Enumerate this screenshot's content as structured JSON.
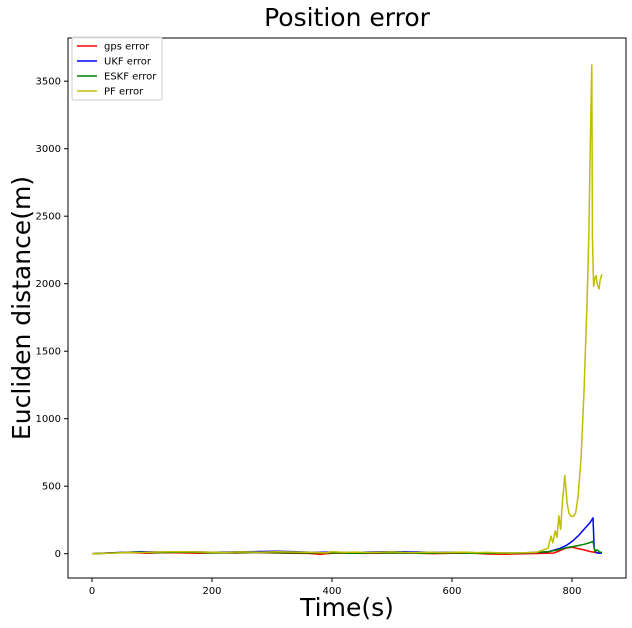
{
  "chart_data": {
    "type": "line",
    "title": "Position error",
    "xlabel": "Time(s)",
    "ylabel": "Eucliden distance(m)",
    "xlim": [
      -40,
      890
    ],
    "ylim": [
      -180,
      3820
    ],
    "xticks": [
      0,
      200,
      400,
      600,
      800
    ],
    "yticks": [
      0,
      500,
      1000,
      1500,
      2000,
      2500,
      3000,
      3500
    ],
    "grid": false,
    "legend_position": "top-left",
    "series": [
      {
        "name": "gps error",
        "color": "#ff0000",
        "points": [
          [
            0,
            0
          ],
          [
            30,
            6
          ],
          [
            60,
            9
          ],
          [
            90,
            4
          ],
          [
            120,
            8
          ],
          [
            150,
            6
          ],
          [
            180,
            3
          ],
          [
            210,
            7
          ],
          [
            240,
            5
          ],
          [
            270,
            9
          ],
          [
            300,
            6
          ],
          [
            330,
            4
          ],
          [
            360,
            2
          ],
          [
            380,
            -4
          ],
          [
            400,
            3
          ],
          [
            420,
            5
          ],
          [
            450,
            2
          ],
          [
            480,
            4
          ],
          [
            510,
            6
          ],
          [
            540,
            3
          ],
          [
            570,
            1
          ],
          [
            600,
            4
          ],
          [
            630,
            5
          ],
          [
            660,
            -2
          ],
          [
            690,
            -4
          ],
          [
            720,
            0
          ],
          [
            750,
            2
          ],
          [
            770,
            5
          ],
          [
            790,
            42
          ],
          [
            800,
            48
          ],
          [
            810,
            38
          ],
          [
            820,
            28
          ],
          [
            830,
            16
          ],
          [
            838,
            10
          ],
          [
            845,
            6
          ],
          [
            850,
            8
          ]
        ]
      },
      {
        "name": "UKF error",
        "color": "#0000ff",
        "points": [
          [
            0,
            0
          ],
          [
            40,
            8
          ],
          [
            80,
            14
          ],
          [
            120,
            12
          ],
          [
            160,
            15
          ],
          [
            200,
            11
          ],
          [
            240,
            13
          ],
          [
            280,
            16
          ],
          [
            310,
            18
          ],
          [
            340,
            14
          ],
          [
            370,
            10
          ],
          [
            400,
            12
          ],
          [
            430,
            9
          ],
          [
            460,
            12
          ],
          [
            490,
            15
          ],
          [
            520,
            14
          ],
          [
            550,
            12
          ],
          [
            580,
            10
          ],
          [
            610,
            11
          ],
          [
            640,
            7
          ],
          [
            670,
            5
          ],
          [
            700,
            4
          ],
          [
            730,
            6
          ],
          [
            760,
            14
          ],
          [
            780,
            40
          ],
          [
            790,
            60
          ],
          [
            800,
            90
          ],
          [
            810,
            130
          ],
          [
            820,
            180
          ],
          [
            830,
            230
          ],
          [
            835,
            265
          ],
          [
            837,
            40
          ],
          [
            840,
            8
          ],
          [
            845,
            3
          ],
          [
            850,
            5
          ]
        ]
      },
      {
        "name": "ESKF error",
        "color": "#008000",
        "points": [
          [
            0,
            0
          ],
          [
            40,
            6
          ],
          [
            70,
            12
          ],
          [
            100,
            8
          ],
          [
            130,
            10
          ],
          [
            160,
            12
          ],
          [
            200,
            6
          ],
          [
            240,
            8
          ],
          [
            280,
            10
          ],
          [
            320,
            7
          ],
          [
            360,
            5
          ],
          [
            400,
            6
          ],
          [
            440,
            4
          ],
          [
            480,
            6
          ],
          [
            520,
            5
          ],
          [
            560,
            4
          ],
          [
            600,
            6
          ],
          [
            640,
            3
          ],
          [
            680,
            4
          ],
          [
            720,
            6
          ],
          [
            760,
            14
          ],
          [
            780,
            32
          ],
          [
            790,
            44
          ],
          [
            800,
            52
          ],
          [
            810,
            60
          ],
          [
            820,
            70
          ],
          [
            830,
            82
          ],
          [
            835,
            90
          ],
          [
            838,
            20
          ],
          [
            842,
            28
          ],
          [
            846,
            12
          ],
          [
            850,
            10
          ]
        ]
      },
      {
        "name": "PF error",
        "color": "#bfbf00",
        "points": [
          [
            0,
            0
          ],
          [
            20,
            2
          ],
          [
            40,
            5
          ],
          [
            60,
            10
          ],
          [
            80,
            8
          ],
          [
            100,
            12
          ],
          [
            130,
            15
          ],
          [
            160,
            14
          ],
          [
            190,
            12
          ],
          [
            220,
            10
          ],
          [
            250,
            13
          ],
          [
            280,
            11
          ],
          [
            310,
            14
          ],
          [
            340,
            12
          ],
          [
            370,
            10
          ],
          [
            390,
            6
          ],
          [
            400,
            14
          ],
          [
            420,
            10
          ],
          [
            440,
            12
          ],
          [
            460,
            9
          ],
          [
            480,
            11
          ],
          [
            500,
            13
          ],
          [
            520,
            10
          ],
          [
            540,
            8
          ],
          [
            560,
            11
          ],
          [
            580,
            9
          ],
          [
            600,
            10
          ],
          [
            620,
            12
          ],
          [
            640,
            8
          ],
          [
            660,
            10
          ],
          [
            680,
            6
          ],
          [
            700,
            5
          ],
          [
            720,
            7
          ],
          [
            740,
            10
          ],
          [
            760,
            40
          ],
          [
            765,
            130
          ],
          [
            768,
            80
          ],
          [
            772,
            170
          ],
          [
            775,
            120
          ],
          [
            778,
            280
          ],
          [
            781,
            180
          ],
          [
            784,
            380
          ],
          [
            786,
            480
          ],
          [
            788,
            580
          ],
          [
            790,
            470
          ],
          [
            792,
            370
          ],
          [
            795,
            300
          ],
          [
            798,
            280
          ],
          [
            802,
            275
          ],
          [
            806,
            300
          ],
          [
            810,
            420
          ],
          [
            815,
            700
          ],
          [
            820,
            1200
          ],
          [
            825,
            1850
          ],
          [
            828,
            2350
          ],
          [
            830,
            2900
          ],
          [
            832,
            3400
          ],
          [
            833,
            3620
          ],
          [
            834,
            2350
          ],
          [
            836,
            1980
          ],
          [
            838,
            2040
          ],
          [
            840,
            2060
          ],
          [
            842,
            2000
          ],
          [
            845,
            1960
          ],
          [
            847,
            2030
          ],
          [
            850,
            2070
          ]
        ]
      }
    ]
  }
}
